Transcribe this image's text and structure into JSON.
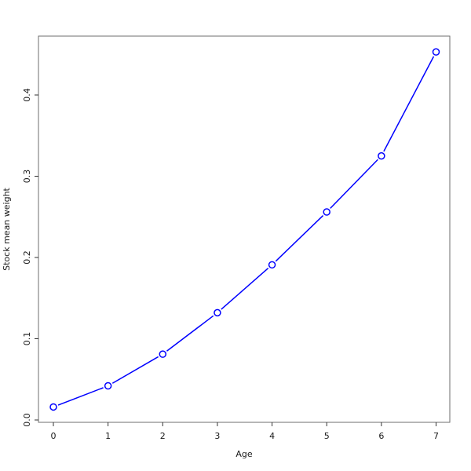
{
  "chart_data": {
    "type": "line",
    "title": "",
    "xlabel": "Age",
    "ylabel": "Stock mean weight",
    "x": [
      0,
      1,
      2,
      3,
      4,
      5,
      6,
      7
    ],
    "values": [
      0.016,
      0.042,
      0.081,
      0.132,
      0.191,
      0.256,
      0.325,
      0.453
    ],
    "x_tick_labels": [
      "0",
      "1",
      "2",
      "3",
      "4",
      "5",
      "6",
      "7"
    ],
    "y_tick_values": [
      0.0,
      0.1,
      0.2,
      0.3,
      0.4
    ],
    "y_tick_labels": [
      "0.0",
      "0.1",
      "0.2",
      "0.3",
      "0.4"
    ],
    "xlim": [
      0,
      7
    ],
    "ylim": [
      0,
      0.47
    ],
    "series_color": "#0000ff",
    "marker": "open-circle",
    "grid": false,
    "legend_position": "none"
  }
}
